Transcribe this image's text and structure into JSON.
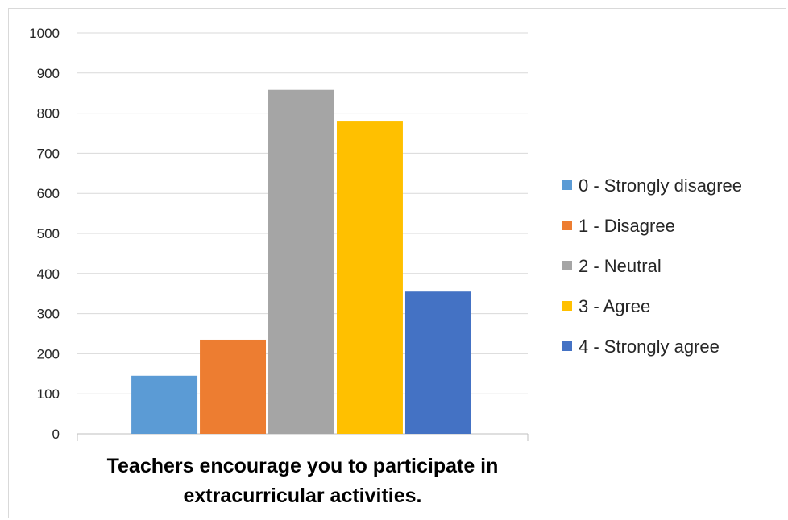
{
  "chart_data": {
    "type": "bar",
    "categories": [
      "Teachers encourage you to participate in extracurricular activities."
    ],
    "category_label_lines": [
      "Teachers encourage you to participate in",
      "extracurricular activities."
    ],
    "series": [
      {
        "name": "0 - Strongly disagree",
        "values": [
          145
        ],
        "color": "#5B9BD5"
      },
      {
        "name": "1 - Disagree",
        "values": [
          235
        ],
        "color": "#ED7D31"
      },
      {
        "name": "2 - Neutral",
        "values": [
          858
        ],
        "color": "#A5A5A5"
      },
      {
        "name": "3 - Agree",
        "values": [
          781
        ],
        "color": "#FFC000"
      },
      {
        "name": "4 - Strongly agree",
        "values": [
          355
        ],
        "color": "#4472C4"
      }
    ],
    "ylim": [
      0,
      1000
    ],
    "yticks": [
      0,
      100,
      200,
      300,
      400,
      500,
      600,
      700,
      800,
      900,
      1000
    ],
    "grid": true,
    "legend": "right",
    "title": "",
    "xlabel": "",
    "ylabel": ""
  }
}
